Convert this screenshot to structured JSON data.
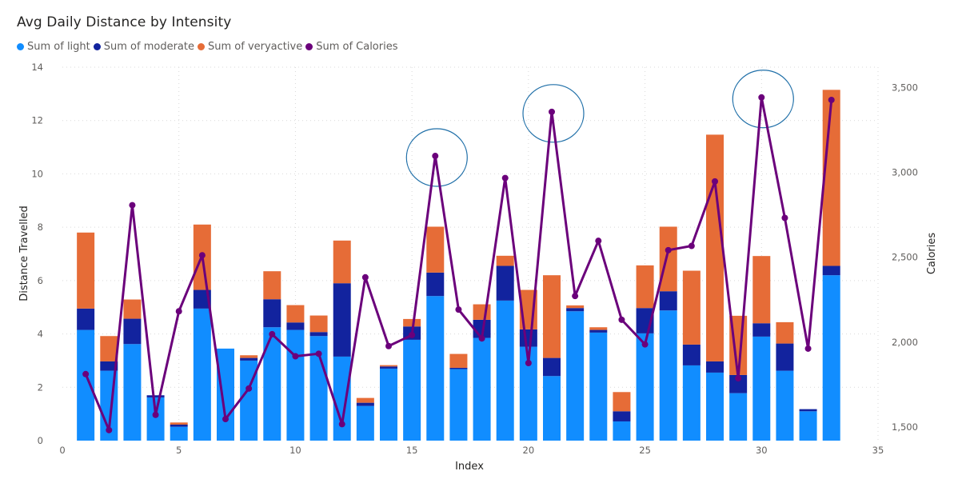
{
  "chart_data": {
    "type": "bar",
    "title": "Avg Daily Distance by Intensity",
    "xlabel": "Index",
    "ylabel": "Distance Travelled",
    "y2label": "Calories",
    "xlim": [
      0,
      35
    ],
    "ylim": [
      0,
      14
    ],
    "y2lim": [
      1420,
      3620
    ],
    "x_ticks": [
      "0",
      "5",
      "10",
      "15",
      "20",
      "25",
      "30",
      "35"
    ],
    "y_ticks": [
      "0",
      "2",
      "4",
      "6",
      "8",
      "10",
      "12",
      "14"
    ],
    "y2_ticks": [
      "1,500",
      "2,000",
      "2,500",
      "3,000",
      "3,500"
    ],
    "grid": true,
    "legend_position": "top-left",
    "x": [
      1,
      2,
      3,
      4,
      5,
      6,
      7,
      8,
      9,
      10,
      11,
      12,
      13,
      14,
      15,
      16,
      17,
      18,
      19,
      20,
      21,
      22,
      23,
      24,
      25,
      26,
      27,
      28,
      29,
      30,
      31,
      32,
      33
    ],
    "series": [
      {
        "name": "Sum of light",
        "type": "bar",
        "stack": "distance",
        "color": "#118dff",
        "values": [
          4.15,
          2.62,
          3.62,
          1.62,
          0.52,
          4.95,
          3.45,
          3.0,
          4.25,
          4.15,
          3.92,
          3.15,
          1.3,
          2.7,
          3.78,
          5.42,
          2.68,
          3.85,
          5.25,
          3.52,
          2.42,
          4.85,
          4.05,
          0.72,
          4.02,
          4.88,
          2.82,
          2.55,
          1.78,
          3.9,
          2.62,
          1.1,
          6.2
        ]
      },
      {
        "name": "Sum of moderate",
        "type": "bar",
        "stack": "distance",
        "color": "#12239e",
        "values": [
          0.8,
          0.35,
          0.95,
          0.08,
          0.08,
          0.7,
          0.0,
          0.1,
          1.05,
          0.28,
          0.15,
          2.75,
          0.12,
          0.08,
          0.5,
          0.88,
          0.05,
          0.68,
          1.3,
          0.65,
          0.68,
          0.12,
          0.1,
          0.38,
          0.95,
          0.72,
          0.78,
          0.42,
          0.68,
          0.5,
          1.02,
          0.08,
          0.35
        ]
      },
      {
        "name": "Sum of veryactive",
        "type": "bar",
        "stack": "distance",
        "color": "#e66c37",
        "values": [
          2.85,
          0.95,
          0.72,
          0.0,
          0.08,
          2.45,
          0.0,
          0.1,
          1.05,
          0.65,
          0.62,
          1.6,
          0.18,
          0.05,
          0.28,
          1.72,
          0.52,
          0.58,
          0.38,
          1.48,
          3.1,
          0.1,
          0.1,
          0.72,
          1.6,
          2.42,
          2.77,
          8.5,
          2.22,
          2.52,
          0.8,
          0.0,
          6.6
        ]
      },
      {
        "name": "Sum of Calories",
        "type": "line",
        "axis": "y2",
        "color": "#6b007b",
        "values": [
          1812,
          1482,
          2807,
          1572,
          2182,
          2512,
          1547,
          1727,
          2047,
          1917,
          1932,
          1517,
          2382,
          1977,
          2042,
          3097,
          2192,
          2022,
          2967,
          1877,
          3357,
          2272,
          2597,
          2132,
          1987,
          2542,
          2567,
          2947,
          1787,
          3442,
          2732,
          1962,
          3427
        ]
      }
    ],
    "annotations": [
      {
        "type": "ellipse-highlight",
        "x": 16
      },
      {
        "type": "ellipse-highlight",
        "x": 21
      },
      {
        "type": "ellipse-highlight",
        "x": 30
      }
    ]
  }
}
